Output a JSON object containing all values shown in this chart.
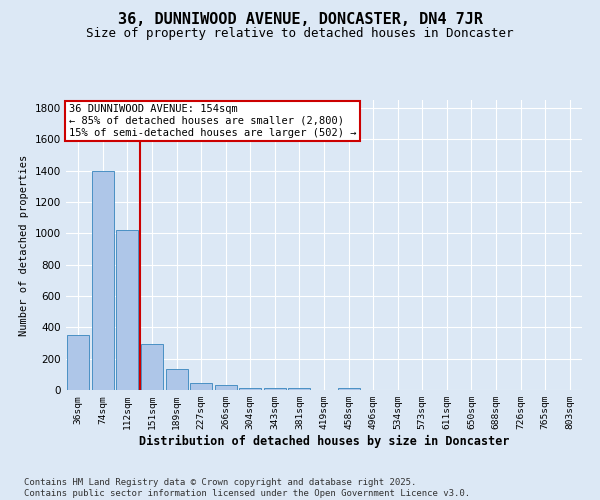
{
  "title": "36, DUNNIWOOD AVENUE, DONCASTER, DN4 7JR",
  "subtitle": "Size of property relative to detached houses in Doncaster",
  "xlabel": "Distribution of detached houses by size in Doncaster",
  "ylabel": "Number of detached properties",
  "categories": [
    "36sqm",
    "74sqm",
    "112sqm",
    "151sqm",
    "189sqm",
    "227sqm",
    "266sqm",
    "304sqm",
    "343sqm",
    "381sqm",
    "419sqm",
    "458sqm",
    "496sqm",
    "534sqm",
    "573sqm",
    "611sqm",
    "650sqm",
    "688sqm",
    "726sqm",
    "765sqm",
    "803sqm"
  ],
  "values": [
    350,
    1400,
    1020,
    295,
    135,
    45,
    30,
    15,
    10,
    12,
    0,
    12,
    0,
    0,
    0,
    0,
    0,
    0,
    0,
    0,
    0
  ],
  "bar_color": "#aec6e8",
  "bar_edge_color": "#4a90c4",
  "red_line_index": 3,
  "red_line_color": "#cc0000",
  "annotation_text": "36 DUNNIWOOD AVENUE: 154sqm\n← 85% of detached houses are smaller (2,800)\n15% of semi-detached houses are larger (502) →",
  "annotation_box_color": "#ffffff",
  "annotation_border_color": "#cc0000",
  "ylim": [
    0,
    1850
  ],
  "yticks": [
    0,
    200,
    400,
    600,
    800,
    1000,
    1200,
    1400,
    1600,
    1800
  ],
  "background_color": "#dce8f5",
  "plot_area_color": "#dce8f5",
  "grid_color": "#ffffff",
  "footer": "Contains HM Land Registry data © Crown copyright and database right 2025.\nContains public sector information licensed under the Open Government Licence v3.0.",
  "title_fontsize": 11,
  "subtitle_fontsize": 9,
  "annotation_fontsize": 7.5,
  "footer_fontsize": 6.5
}
